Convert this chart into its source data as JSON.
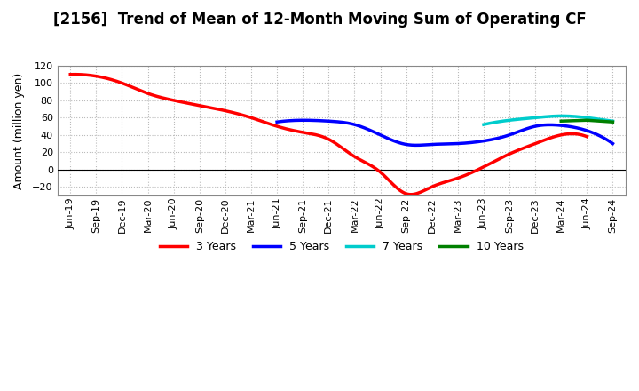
{
  "title": "[2156]  Trend of Mean of 12-Month Moving Sum of Operating CF",
  "ylabel": "Amount (million yen)",
  "background_color": "#ffffff",
  "plot_bg_color": "#ffffff",
  "grid_color": "#aaaaaa",
  "xlim_start": 0,
  "xlim_end": 63,
  "ylim": [
    -30,
    120
  ],
  "yticks": [
    -20,
    0,
    20,
    40,
    60,
    80,
    100,
    120
  ],
  "xtick_labels": [
    "Jun-19",
    "Sep-19",
    "Dec-19",
    "Mar-20",
    "Jun-20",
    "Sep-20",
    "Dec-20",
    "Mar-21",
    "Jun-21",
    "Sep-21",
    "Dec-21",
    "Mar-22",
    "Jun-22",
    "Sep-22",
    "Dec-22",
    "Mar-23",
    "Jun-23",
    "Sep-23",
    "Dec-23",
    "Mar-24",
    "Jun-24",
    "Sep-24"
  ],
  "series": [
    {
      "label": "3 Years",
      "color": "#ff0000",
      "linewidth": 2.5,
      "x_start_idx": 0,
      "x_end_idx": 20,
      "points_x": [
        0,
        1,
        2,
        3,
        4,
        5,
        6,
        7,
        8,
        9,
        10,
        11,
        12,
        13,
        14,
        15,
        16,
        17,
        18,
        19,
        20
      ],
      "points_y": [
        110,
        108,
        100,
        88,
        80,
        74,
        68,
        60,
        50,
        43,
        35,
        15,
        -3,
        -28,
        -20,
        -10,
        3,
        18,
        30,
        40,
        38
      ]
    },
    {
      "label": "5 Years",
      "color": "#0000ff",
      "linewidth": 2.5,
      "x_start_idx": 8,
      "x_end_idx": 21,
      "points_x": [
        8,
        9,
        10,
        11,
        12,
        13,
        14,
        15,
        16,
        17,
        18,
        19,
        20,
        21
      ],
      "points_y": [
        55,
        57,
        56,
        52,
        40,
        29,
        29,
        30,
        33,
        40,
        50,
        51,
        45,
        30
      ]
    },
    {
      "label": "7 Years",
      "color": "#00cccc",
      "linewidth": 2.5,
      "x_start_idx": 16,
      "x_end_idx": 21,
      "points_x": [
        16,
        17,
        18,
        19,
        20,
        21
      ],
      "points_y": [
        52,
        57,
        60,
        62,
        60,
        56
      ]
    },
    {
      "label": "10 Years",
      "color": "#008000",
      "linewidth": 2.5,
      "x_start_idx": 19,
      "x_end_idx": 21,
      "points_x": [
        19,
        20,
        21
      ],
      "points_y": [
        56,
        57,
        55
      ]
    }
  ]
}
